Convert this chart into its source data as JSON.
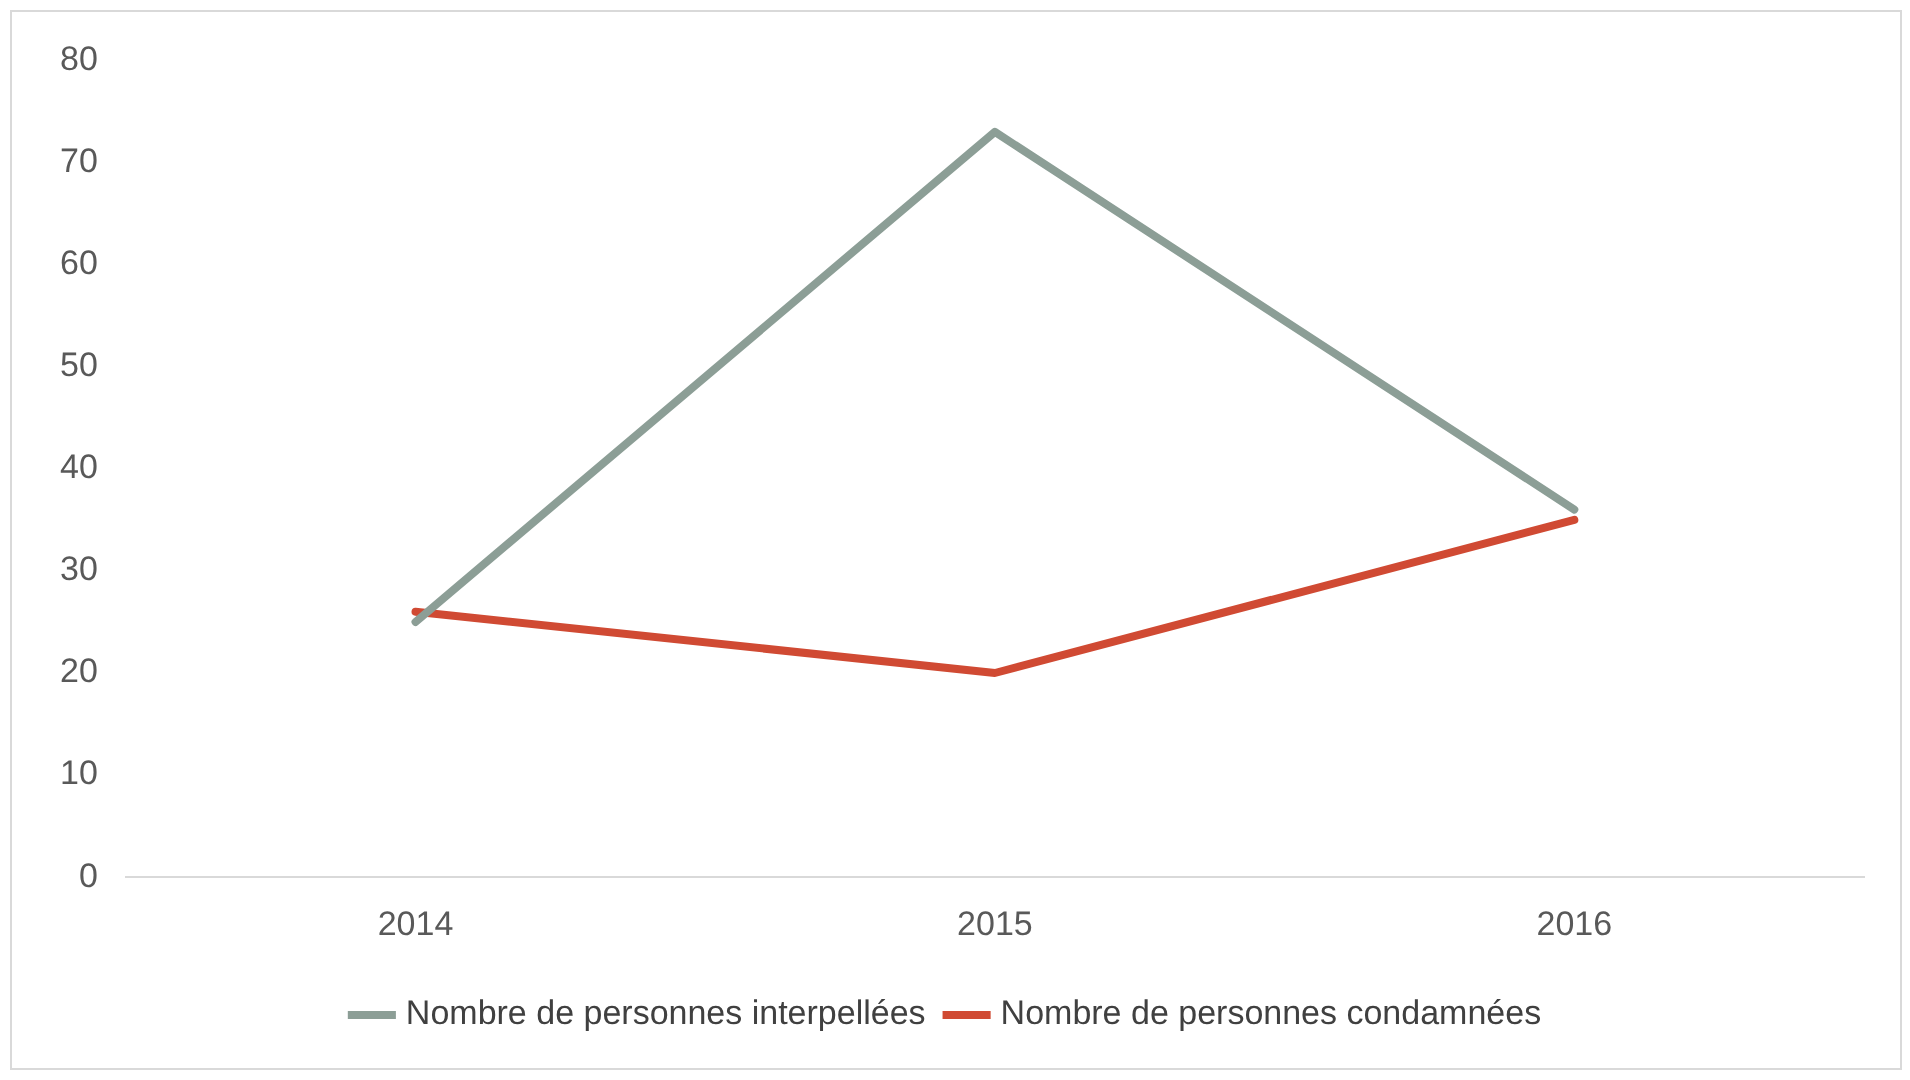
{
  "chart_data": {
    "type": "line",
    "categories": [
      "2014",
      "2015",
      "2016"
    ],
    "series": [
      {
        "name": "Nombre de personnes interpellées",
        "color": "#8c9e96",
        "values": [
          25,
          73,
          36
        ]
      },
      {
        "name": "Nombre de personnes condamnées",
        "color": "#d04a33",
        "values": [
          26,
          20,
          35
        ]
      }
    ],
    "ylim": [
      0,
      80
    ],
    "yticks": [
      0,
      10,
      20,
      30,
      40,
      50,
      60,
      70,
      80
    ],
    "grid": false,
    "legend": "bottom",
    "marker": "none",
    "line_style": "solid"
  }
}
